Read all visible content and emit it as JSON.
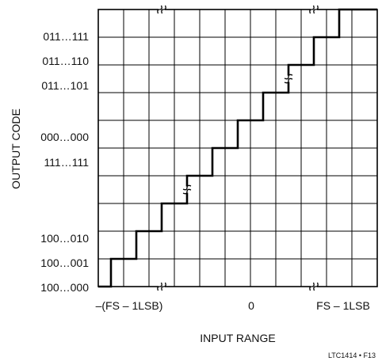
{
  "chart_data": {
    "type": "line",
    "subtype": "staircase transfer function",
    "xlabel": "INPUT RANGE",
    "ylabel": "OUTPUT CODE",
    "x_tick_labels": [
      "–(FS – 1LSB)",
      "0",
      "FS – 1LSB"
    ],
    "y_tick_labels": [
      "011…111",
      "011…110",
      "011…101",
      "000…000",
      "111…111",
      "100…010",
      "100…001",
      "100…000"
    ],
    "figure_code": "LTC1414 • F13",
    "grid": true,
    "grid_columns": 11,
    "grid_rows": 10,
    "axis_breaks": [
      "top axis at left third",
      "top axis at right third",
      "bottom axis at left third",
      "bottom axis at right third",
      "step line near lower-left",
      "step line near upper-right"
    ],
    "staircase_steps": [
      {
        "x_start": 0,
        "x_end": 0.5,
        "level": 0
      },
      {
        "x_start": 0.5,
        "x_end": 1.5,
        "level": 1
      },
      {
        "x_start": 1.5,
        "x_end": 2.5,
        "level": 2
      },
      {
        "x_start": 2.5,
        "x_end": 3.5,
        "level": 3
      },
      {
        "x_start": 3.5,
        "x_end": 4.5,
        "level": 4
      },
      {
        "x_start": 4.5,
        "x_end": 5.5,
        "level": 5
      },
      {
        "x_start": 5.5,
        "x_end": 6.5,
        "level": 6
      },
      {
        "x_start": 6.5,
        "x_end": 7.5,
        "level": 7
      },
      {
        "x_start": 7.5,
        "x_end": 8.5,
        "level": 8
      },
      {
        "x_start": 8.5,
        "x_end": 9.5,
        "level": 9
      },
      {
        "x_start": 9.5,
        "x_end": 11,
        "level": 10
      }
    ],
    "colors": {
      "line": "#000000",
      "grid": "#000000",
      "background": "#ffffff"
    }
  }
}
